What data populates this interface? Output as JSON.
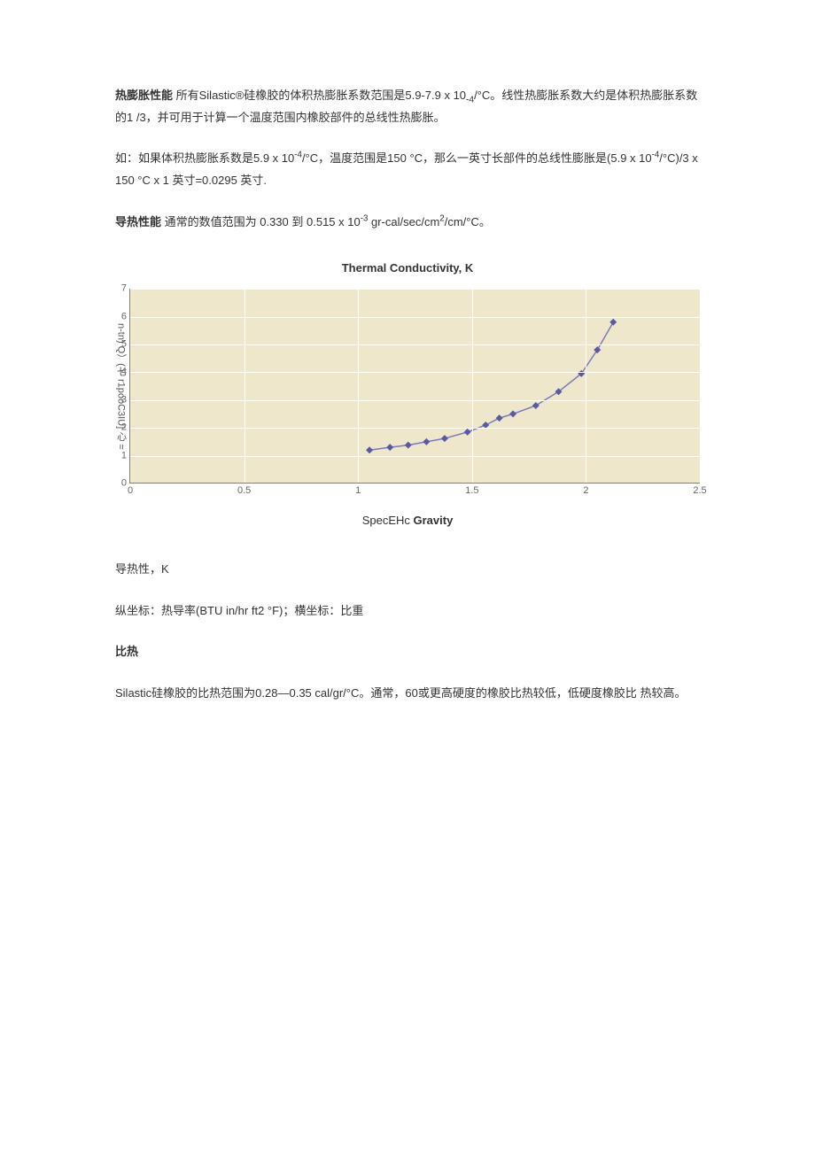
{
  "paragraphs": {
    "p1_lead": "热膨胀性能",
    "p1_body_a": " 所有Silastic®硅橡胶的体积热膨胀系数范围是5.9-7.9 x 10",
    "p1_sup1": "-4",
    "p1_body_b": "/°C。线性热膨胀系数大约是体积热膨胀系数 的1 /3，并可用于计算一个温度范围内橡胶部件的总线性热膨胀。",
    "p2_a": "如：如果体积热膨胀系数是5.9 x 10",
    "p2_sup1": "-4",
    "p2_b": "/°C，温度范围是150 °C，那么一英寸长部件的总线性膨胀是(5.9 x 10",
    "p2_sup2": "-4",
    "p2_c": "/°C)/3 x 150 °C x 1 英寸=0.0295 英寸.",
    "p3_lead": "导热性能",
    "p3_body_a": " 通常的数值范围为 0.330 到 0.515 x 10",
    "p3_sup1": "-3",
    "p3_body_b": " gr-cal/sec/cm",
    "p3_sup2": "2",
    "p3_body_c": "/cm/°C。",
    "p4": "导热性，K",
    "p5": "纵坐标：热导率(BTU in/hr ft2 °F)；横坐标：比重",
    "p6_lead": "比热",
    "p7": "Silastic硅橡胶的比热范围为0.28―0.35 cal/gr/°C。通常，60或更高硬度的橡胶比热较低，低硬度橡胶比 热较高。"
  },
  "chart": {
    "title": "Thermal Conductivity, K",
    "ylabel": "n-tn) Q）(七 r1pooC3IU] 心 =",
    "xlabel_plain": "SpecEHc ",
    "xlabel_bold": "Gravity",
    "type": "line",
    "xlim": [
      0,
      2.5
    ],
    "ylim": [
      0,
      7
    ],
    "xticks": [
      0,
      0.5,
      1,
      1.5,
      2,
      2.5
    ],
    "yticks": [
      0,
      1,
      2,
      3,
      4,
      5,
      6,
      7
    ],
    "background_color": "#efe7cc",
    "grid_color": "#ffffff",
    "axis_color": "#808080",
    "line_color": "#7b7bb8",
    "marker_color": "#5a5aa0",
    "marker_size": 4,
    "line_width": 1.5,
    "points": [
      {
        "x": 1.05,
        "y": 1.2
      },
      {
        "x": 1.14,
        "y": 1.3
      },
      {
        "x": 1.22,
        "y": 1.38
      },
      {
        "x": 1.3,
        "y": 1.5
      },
      {
        "x": 1.38,
        "y": 1.62
      },
      {
        "x": 1.48,
        "y": 1.85
      },
      {
        "x": 1.56,
        "y": 2.1
      },
      {
        "x": 1.62,
        "y": 2.35
      },
      {
        "x": 1.68,
        "y": 2.5
      },
      {
        "x": 1.78,
        "y": 2.8
      },
      {
        "x": 1.88,
        "y": 3.3
      },
      {
        "x": 1.98,
        "y": 3.95
      },
      {
        "x": 2.05,
        "y": 4.8
      },
      {
        "x": 2.12,
        "y": 5.8
      }
    ]
  }
}
